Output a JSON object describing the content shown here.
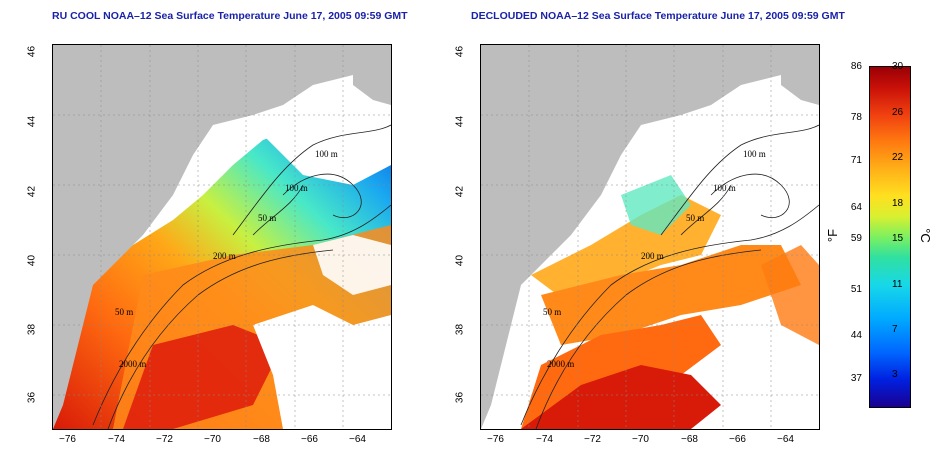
{
  "left_panel": {
    "title": "RU COOL NOAA–12 Sea Surface Temperature June 17, 2005 09:59 GMT"
  },
  "right_panel": {
    "title": "DECLOUDED NOAA–12 Sea Surface Temperature June 17, 2005 09:59 GMT"
  },
  "axes": {
    "x_ticks": [
      "−76",
      "−74",
      "−72",
      "−70",
      "−68",
      "−66",
      "−64"
    ],
    "y_ticks": [
      "46",
      "44",
      "42",
      "40",
      "38",
      "36"
    ]
  },
  "contours": {
    "labels": [
      "100 m",
      "100 m",
      "50 m",
      "200 m",
      "50 m",
      "2000 m"
    ]
  },
  "colorbar": {
    "fahrenheit_label": "°F",
    "celsius_label": "°C",
    "fahrenheit_ticks": [
      "86",
      "78",
      "71",
      "64",
      "59",
      "51",
      "44",
      "37"
    ],
    "celsius_ticks": [
      "30",
      "26",
      "22",
      "18",
      "15",
      "11",
      "7",
      "3"
    ],
    "colors": [
      "#1a0090",
      "#0066ff",
      "#18d8e8",
      "#7cf060",
      "#ffe020",
      "#ff7a10",
      "#c81008",
      "#9a0006"
    ]
  }
}
